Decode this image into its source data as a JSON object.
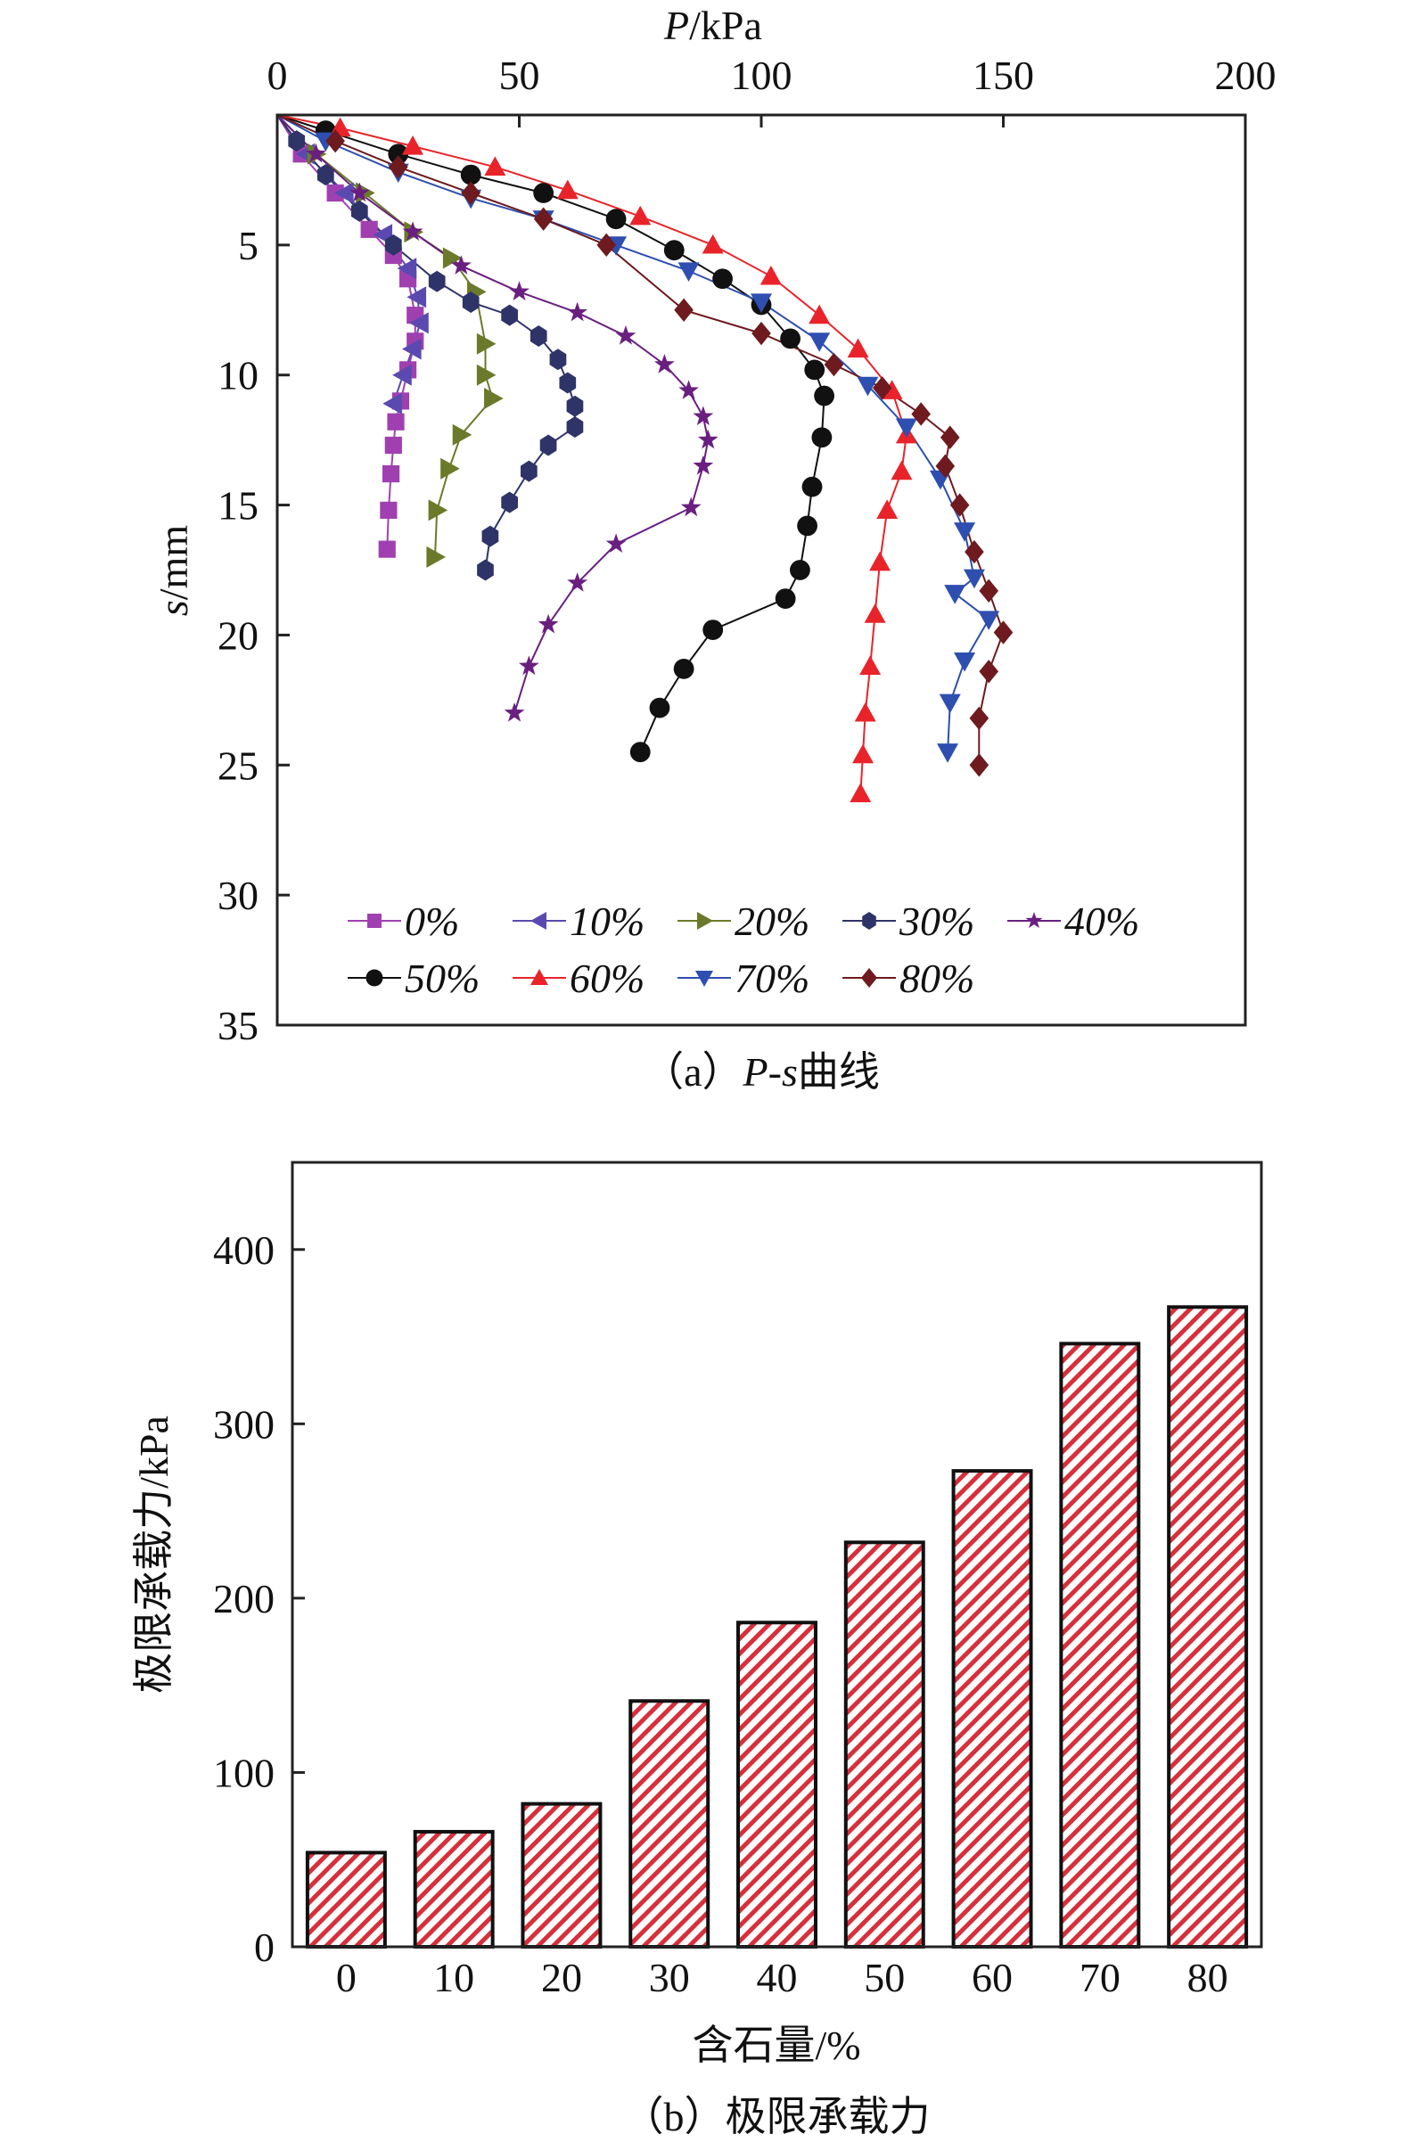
{
  "chart_data": [
    {
      "type": "line",
      "title": "",
      "caption": "（a）P-s曲线",
      "xlabel": "P/kPa",
      "ylabel": "s/mm",
      "xlim": [
        0,
        200
      ],
      "ylim": [
        35,
        0
      ],
      "xticks": [
        "0",
        "50",
        "100",
        "150",
        "200"
      ],
      "yticks": [
        "5",
        "10",
        "15",
        "20",
        "25",
        "30",
        "35"
      ],
      "legend_position": "bottom",
      "series": [
        {
          "name": "0%",
          "color": "#a040b0",
          "marker": "square",
          "points": [
            [
              0,
              0
            ],
            [
              5,
              1.5
            ],
            [
              12,
              3
            ],
            [
              19,
              4.4
            ],
            [
              24,
              5.4
            ],
            [
              27,
              6.3
            ],
            [
              28.5,
              7.7
            ],
            [
              28.5,
              8.7
            ],
            [
              27,
              9.8
            ],
            [
              25.5,
              11
            ],
            [
              24.5,
              11.8
            ],
            [
              24,
              12.7
            ],
            [
              23.5,
              13.8
            ],
            [
              23,
              15.2
            ],
            [
              22.7,
              16.7
            ]
          ]
        },
        {
          "name": "10%",
          "color": "#5a4ab0",
          "marker": "triangle-left",
          "points": [
            [
              0,
              0
            ],
            [
              6,
              1.5
            ],
            [
              14,
              3
            ],
            [
              22,
              4.6
            ],
            [
              27,
              5.9
            ],
            [
              29,
              7
            ],
            [
              29.5,
              8
            ],
            [
              28,
              9
            ],
            [
              26,
              10
            ],
            [
              24,
              11.1
            ]
          ]
        },
        {
          "name": "20%",
          "color": "#6b7a2a",
          "marker": "triangle-right",
          "points": [
            [
              0,
              0
            ],
            [
              8,
              1.5
            ],
            [
              18,
              3
            ],
            [
              28,
              4.5
            ],
            [
              36,
              5.5
            ],
            [
              41,
              6.8
            ],
            [
              43,
              8.8
            ],
            [
              43,
              10
            ],
            [
              44.5,
              10.9
            ],
            [
              38,
              12.3
            ],
            [
              35.5,
              13.6
            ],
            [
              33,
              15.2
            ],
            [
              32.6,
              17
            ]
          ]
        },
        {
          "name": "30%",
          "color": "#2e3468",
          "marker": "hexagon",
          "points": [
            [
              0,
              0
            ],
            [
              4,
              1
            ],
            [
              10,
              2.3
            ],
            [
              17,
              3.7
            ],
            [
              24,
              5
            ],
            [
              33,
              6.4
            ],
            [
              40,
              7.2
            ],
            [
              48,
              7.7
            ],
            [
              54,
              8.5
            ],
            [
              58,
              9.4
            ],
            [
              60,
              10.3
            ],
            [
              61.5,
              11.2
            ],
            [
              61.5,
              12
            ],
            [
              56,
              12.7
            ],
            [
              52,
              13.7
            ],
            [
              48,
              14.9
            ],
            [
              44,
              16.2
            ],
            [
              43,
              17.5
            ]
          ]
        },
        {
          "name": "40%",
          "color": "#6a1f80",
          "marker": "star",
          "points": [
            [
              0,
              0
            ],
            [
              8,
              1.5
            ],
            [
              17,
              3
            ],
            [
              28,
              4.5
            ],
            [
              38,
              5.8
            ],
            [
              50,
              6.8
            ],
            [
              62,
              7.6
            ],
            [
              72,
              8.5
            ],
            [
              80,
              9.6
            ],
            [
              85,
              10.6
            ],
            [
              88,
              11.6
            ],
            [
              89,
              12.5
            ],
            [
              88,
              13.5
            ],
            [
              85.5,
              15.1
            ],
            [
              70,
              16.5
            ],
            [
              62,
              18
            ],
            [
              56,
              19.6
            ],
            [
              52,
              21.2
            ],
            [
              49,
              23
            ]
          ]
        },
        {
          "name": "50%",
          "color": "#111111",
          "marker": "circle",
          "points": [
            [
              0,
              0
            ],
            [
              10,
              0.6
            ],
            [
              25,
              1.5
            ],
            [
              40,
              2.3
            ],
            [
              55,
              3
            ],
            [
              70,
              4
            ],
            [
              82,
              5.2
            ],
            [
              92,
              6.3
            ],
            [
              100,
              7.3
            ],
            [
              106,
              8.6
            ],
            [
              111,
              9.8
            ],
            [
              113,
              10.8
            ],
            [
              112.5,
              12.4
            ],
            [
              110.5,
              14.3
            ],
            [
              109.5,
              15.8
            ],
            [
              108,
              17.5
            ],
            [
              105,
              18.6
            ],
            [
              90,
              19.8
            ],
            [
              84,
              21.3
            ],
            [
              79,
              22.8
            ],
            [
              75,
              24.5
            ]
          ]
        },
        {
          "name": "60%",
          "color": "#e8242a",
          "marker": "triangle-up",
          "points": [
            [
              0,
              0
            ],
            [
              13,
              0.5
            ],
            [
              28,
              1.2
            ],
            [
              45,
              2
            ],
            [
              60,
              2.9
            ],
            [
              75,
              3.9
            ],
            [
              90,
              5
            ],
            [
              102,
              6.2
            ],
            [
              112,
              7.7
            ],
            [
              120,
              9
            ],
            [
              127,
              10.6
            ],
            [
              130,
              12.3
            ],
            [
              129,
              13.7
            ],
            [
              126,
              15.2
            ],
            [
              124.5,
              17.2
            ],
            [
              123.5,
              19.2
            ],
            [
              122.5,
              21.2
            ],
            [
              121.5,
              23
            ],
            [
              121,
              24.6
            ],
            [
              120.5,
              26.1
            ]
          ]
        },
        {
          "name": "70%",
          "color": "#2e4fb0",
          "marker": "triangle-down",
          "points": [
            [
              0,
              0
            ],
            [
              10,
              1
            ],
            [
              25,
              2.2
            ],
            [
              40,
              3.2
            ],
            [
              55,
              4
            ],
            [
              70,
              5
            ],
            [
              85,
              6
            ],
            [
              100,
              7.2
            ],
            [
              112,
              8.7
            ],
            [
              122,
              10.4
            ],
            [
              130,
              12
            ],
            [
              137,
              14
            ],
            [
              142,
              16
            ],
            [
              144,
              17.8
            ],
            [
              140,
              18.4
            ],
            [
              147,
              19.4
            ],
            [
              142,
              21
            ],
            [
              139,
              22.6
            ],
            [
              138.5,
              24.5
            ]
          ]
        },
        {
          "name": "80%",
          "color": "#6e1a1e",
          "marker": "diamond",
          "points": [
            [
              0,
              0
            ],
            [
              12,
              1
            ],
            [
              25,
              2
            ],
            [
              40,
              3
            ],
            [
              55,
              4
            ],
            [
              68,
              5
            ],
            [
              84,
              7.5
            ],
            [
              100,
              8.4
            ],
            [
              115,
              9.6
            ],
            [
              125,
              10.5
            ],
            [
              133,
              11.5
            ],
            [
              139,
              12.4
            ],
            [
              138,
              13.5
            ],
            [
              141,
              15
            ],
            [
              144,
              16.8
            ],
            [
              147,
              18.3
            ],
            [
              150,
              19.9
            ],
            [
              147,
              21.4
            ],
            [
              145,
              23.2
            ],
            [
              145,
              25
            ]
          ]
        }
      ]
    },
    {
      "type": "bar",
      "title": "",
      "caption": "（b）极限承载力",
      "xlabel": "含石量/%",
      "ylabel": "极限承载力/kPa",
      "ylim": [
        0,
        450
      ],
      "yticks": [
        "0",
        "100",
        "200",
        "300",
        "400"
      ],
      "categories": [
        "0",
        "10",
        "20",
        "30",
        "40",
        "50",
        "60",
        "70",
        "80"
      ],
      "values": [
        54,
        66,
        82,
        141,
        186,
        232,
        273,
        346,
        367
      ],
      "bar_color": "#d6303c"
    }
  ]
}
